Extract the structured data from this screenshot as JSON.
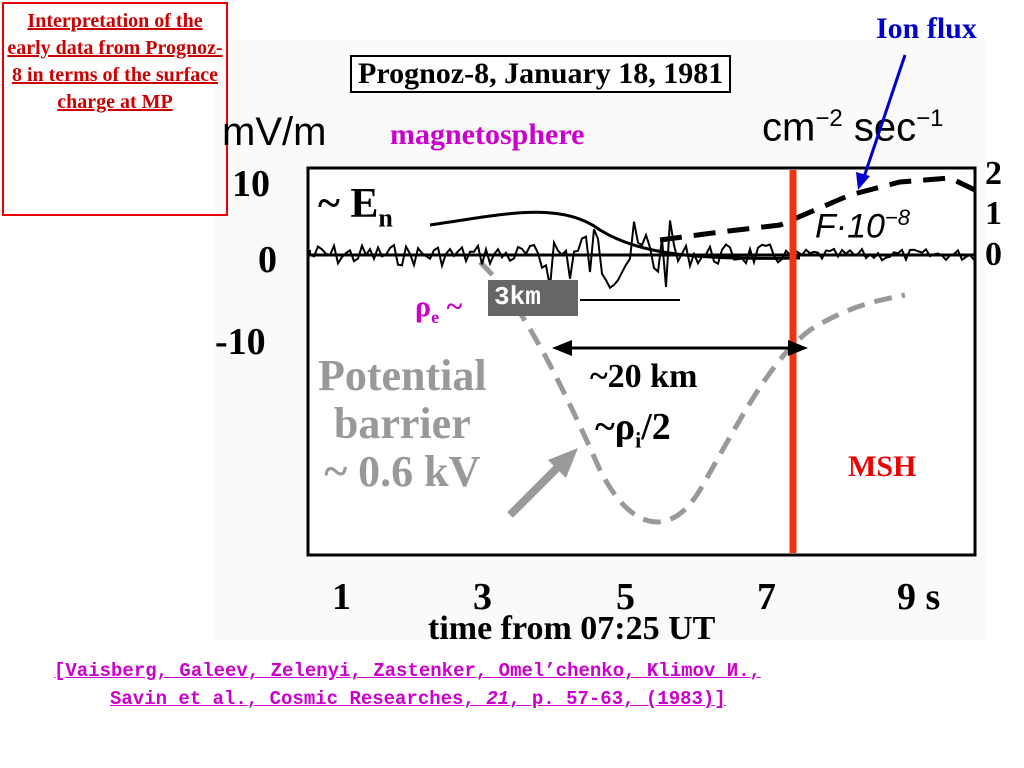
{
  "note": "Interpretation of the early data from Prognoz-8 in terms of the surface charge at MP",
  "ion_flux": "Ion flux",
  "figure": {
    "title": "Prognoz-8, January 18, 1981",
    "left_unit": "mV/m",
    "right_unit": {
      "cm": "cm",
      "cm_exp": "−2",
      "sec": "sec",
      "sec_exp": "−1"
    },
    "magnetosphere": "magnetosphere",
    "msh": "MSH",
    "en": {
      "base": "~ E",
      "sub": "n"
    },
    "flux_label": {
      "base": "F·10",
      "exp": "−8"
    },
    "rho_e": {
      "base": "ρ",
      "sub": "e",
      "tilde": "~",
      "box": "3km"
    },
    "distance": "~20 km",
    "rho_i": {
      "base": "~ρ",
      "sub": "i",
      "tail": "/2"
    },
    "barrier": [
      "Potential",
      "barrier",
      "~ 0.6 kV"
    ],
    "x_ticks": [
      "1",
      "3",
      "5",
      "7",
      "9 s"
    ],
    "left_ticks": [
      "10",
      "0",
      "-10"
    ],
    "right_ticks": [
      "2",
      "1",
      "0"
    ],
    "x_label": "time from 07:25 UT"
  },
  "citation": {
    "line1": "[Vaisberg, Galeev, Zelenyi, Zastenker, Omel’chenko, Klimov И.,",
    "line2_start": "Savin et al., Cosmic Researches, ",
    "volume": "21",
    "line2_end": ", p. 57-63, (1983)]"
  }
}
